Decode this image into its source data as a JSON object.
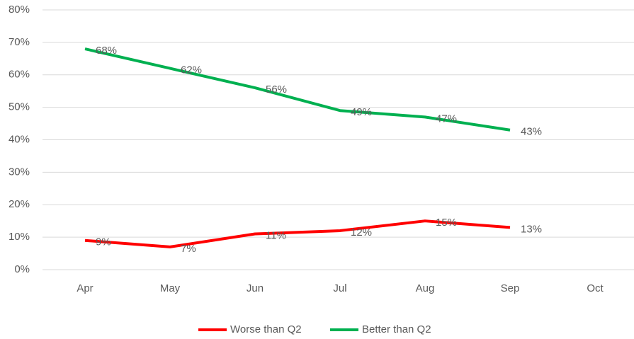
{
  "chart_data": {
    "type": "line",
    "categories": [
      "Apr",
      "May",
      "Jun",
      "Jul",
      "Aug",
      "Sep",
      "Oct"
    ],
    "series": [
      {
        "name": "Worse than Q2",
        "color": "#ff0000",
        "values": [
          9,
          7,
          11,
          12,
          15,
          13,
          null
        ],
        "value_labels": [
          "9%",
          "7%",
          "11%",
          "12%",
          "15%",
          "13%",
          null
        ]
      },
      {
        "name": "Better than Q2",
        "color": "#00b050",
        "values": [
          68,
          62,
          56,
          49,
          47,
          43,
          null
        ],
        "value_labels": [
          "68%",
          "62%",
          "56%",
          "49%",
          "47%",
          "43%",
          null
        ]
      }
    ],
    "ylim": [
      0,
      80
    ],
    "yticks": [
      {
        "value": 0,
        "label": "0%"
      },
      {
        "value": 10,
        "label": "10%"
      },
      {
        "value": 20,
        "label": "20%"
      },
      {
        "value": 30,
        "label": "30%"
      },
      {
        "value": 40,
        "label": "40%"
      },
      {
        "value": 50,
        "label": "50%"
      },
      {
        "value": 60,
        "label": "60%"
      },
      {
        "value": 70,
        "label": "70%"
      },
      {
        "value": 80,
        "label": "80%"
      }
    ],
    "grid": true,
    "legend": "bottom"
  }
}
